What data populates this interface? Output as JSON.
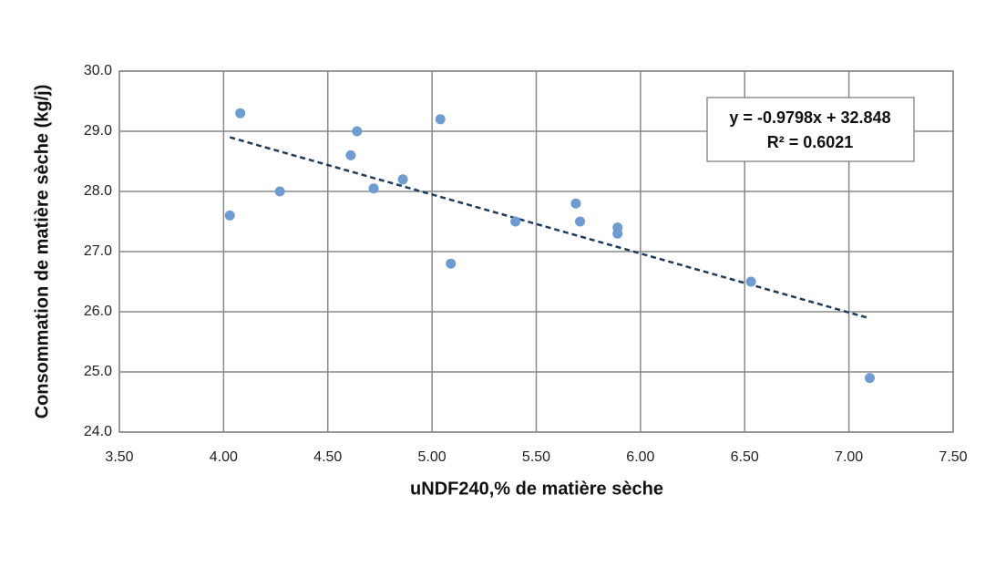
{
  "chart_data": {
    "type": "scatter",
    "x_label": "uNDF240,% de matière sèche",
    "y_label": "Consommation de matière sèche (kg/j)",
    "x": [
      4.03,
      4.08,
      4.27,
      4.61,
      4.64,
      4.72,
      4.86,
      5.04,
      5.09,
      5.4,
      5.69,
      5.71,
      5.89,
      5.89,
      6.53,
      7.1
    ],
    "values": [
      27.6,
      29.3,
      28.0,
      28.6,
      29.0,
      28.05,
      28.2,
      29.2,
      26.8,
      27.5,
      27.8,
      27.5,
      27.4,
      27.3,
      26.5,
      24.9
    ],
    "color": "#6d9bd2",
    "trendline": {
      "x": [
        4.03,
        7.1
      ],
      "y": [
        28.9,
        25.89
      ],
      "color": "#1f3b5e",
      "equation": "y = -0.9798x + 32.848",
      "r_squared": "R² = 0.6021"
    },
    "xlim": [
      3.5,
      7.5
    ],
    "xticks": [
      {
        "value": 3.5,
        "label": "3.50"
      },
      {
        "value": 4,
        "label": "4.00"
      },
      {
        "value": 4.5,
        "label": "4.50"
      },
      {
        "value": 5,
        "label": "5.00"
      },
      {
        "value": 5.5,
        "label": "5.50"
      },
      {
        "value": 6,
        "label": "6.00"
      },
      {
        "value": 6.5,
        "label": "6.50"
      },
      {
        "value": 7,
        "label": "7.00"
      },
      {
        "value": 7.5,
        "label": "7.50"
      }
    ],
    "ylim": [
      24,
      30
    ],
    "yticks": [
      {
        "value": 24,
        "label": "24.0"
      },
      {
        "value": 25,
        "label": "25.0"
      },
      {
        "value": 26,
        "label": "26.0"
      },
      {
        "value": 27,
        "label": "27.0"
      },
      {
        "value": 28,
        "label": "28.0"
      },
      {
        "value": 29,
        "label": "29.0"
      },
      {
        "value": 30,
        "label": "30.0"
      }
    ],
    "grid": true
  }
}
